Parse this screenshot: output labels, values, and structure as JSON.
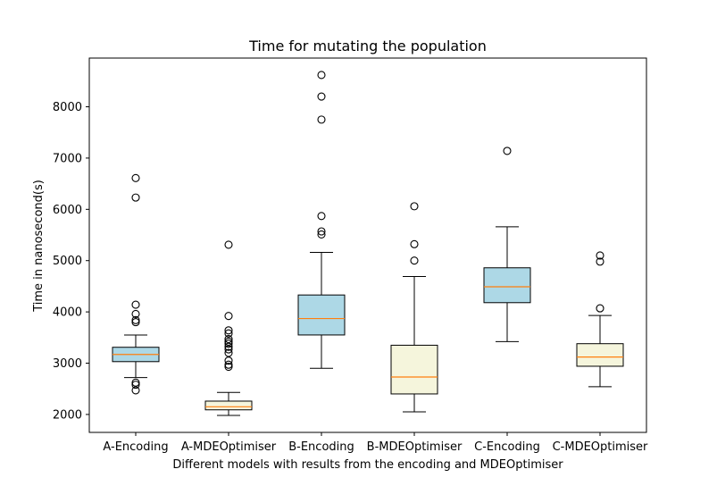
{
  "chart_data": {
    "type": "boxplot",
    "title": "Time for mutating the population",
    "xlabel": "Different models with results from the encoding and MDEOptimiser",
    "ylabel": "Time in nanosecond(s)",
    "ylim": [
      1650,
      8950
    ],
    "yticks": [
      2000,
      3000,
      4000,
      5000,
      6000,
      7000,
      8000
    ],
    "grid": false,
    "colors": {
      "encoding_fill": "#add8e6",
      "mdeoptimiser_fill": "#f5f5dc",
      "median_line": "#ff7f0e"
    },
    "categories": [
      "A-Encoding",
      "A-MDEOptimiser",
      "B-Encoding",
      "B-MDEOptimiser",
      "C-Encoding",
      "C-MDEOptimiser"
    ],
    "boxes": [
      {
        "label": "A-Encoding",
        "whisker_low": 2720,
        "q1": 3030,
        "median": 3170,
        "q3": 3310,
        "whisker_high": 3550,
        "outliers": [
          2470,
          2580,
          2620,
          3800,
          3840,
          3960,
          4140,
          6230,
          6610
        ],
        "fill": "encoding"
      },
      {
        "label": "A-MDEOptimiser",
        "whisker_low": 1980,
        "q1": 2090,
        "median": 2150,
        "q3": 2260,
        "whisker_high": 2430,
        "outliers": [
          2930,
          2970,
          3050,
          3200,
          3270,
          3320,
          3380,
          3420,
          3470,
          3580,
          3640,
          3920,
          5310
        ],
        "fill": "mdeoptimiser"
      },
      {
        "label": "B-Encoding",
        "whisker_low": 2900,
        "q1": 3550,
        "median": 3870,
        "q3": 4330,
        "whisker_high": 5160,
        "outliers": [
          5510,
          5570,
          5870,
          7750,
          8200,
          8620
        ],
        "fill": "encoding"
      },
      {
        "label": "B-MDEOptimiser",
        "whisker_low": 2050,
        "q1": 2400,
        "median": 2730,
        "q3": 3350,
        "whisker_high": 4690,
        "outliers": [
          5000,
          5320,
          6060
        ],
        "fill": "mdeoptimiser"
      },
      {
        "label": "C-Encoding",
        "whisker_low": 3420,
        "q1": 4180,
        "median": 4490,
        "q3": 4860,
        "whisker_high": 5660,
        "outliers": [
          7140
        ],
        "fill": "encoding"
      },
      {
        "label": "C-MDEOptimiser",
        "whisker_low": 2540,
        "q1": 2940,
        "median": 3120,
        "q3": 3380,
        "whisker_high": 3930,
        "outliers": [
          4070,
          4980,
          5100
        ],
        "fill": "mdeoptimiser"
      }
    ]
  }
}
